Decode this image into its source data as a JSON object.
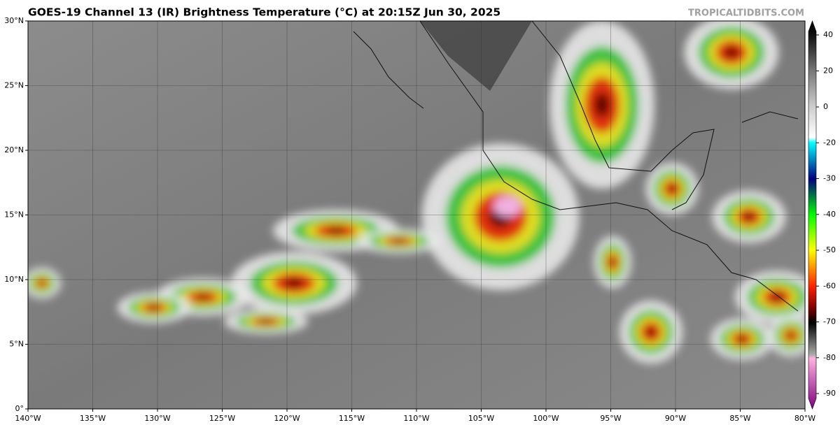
{
  "title": "GOES-19 Channel 13 (IR) Brightness Temperature (°C) at 20:15Z Jun 30, 2025",
  "credit": "TROPICALTIDBITS.COM",
  "lat_labels": [
    "30°N",
    "25°N",
    "20°N",
    "15°N",
    "10°N",
    "5°N",
    "0°"
  ],
  "lon_labels": [
    "140°W",
    "135°W",
    "130°W",
    "125°W",
    "120°W",
    "115°W",
    "110°W",
    "105°W",
    "100°W",
    "95°W",
    "90°W",
    "85°W",
    "80°W"
  ],
  "colorbar_labels": [
    "40",
    "20",
    "0",
    "-20",
    "-30",
    "-40",
    "-50",
    "-60",
    "-70",
    "-80",
    "-90"
  ]
}
